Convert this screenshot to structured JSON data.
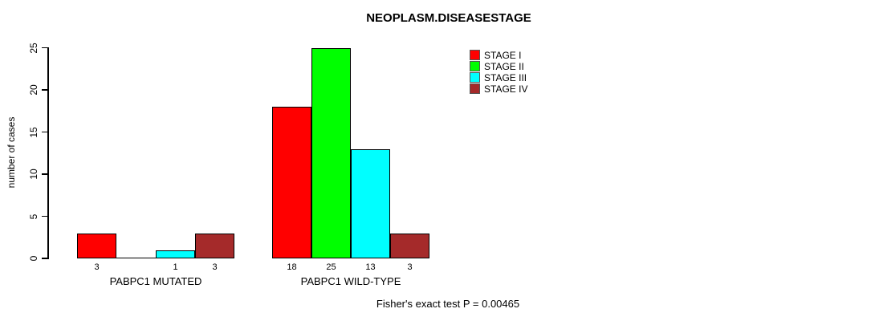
{
  "chart_data": {
    "type": "bar",
    "title": "NEOPLASM.DISEASESTAGE",
    "ylabel": "number of cases",
    "xlabel": "",
    "annotation": "Fisher's exact test P = 0.00465",
    "categories": [
      "PABPC1 MUTATED",
      "PABPC1 WILD-TYPE"
    ],
    "series": [
      {
        "name": "STAGE I",
        "color": "#ff0000",
        "values": [
          3,
          18
        ]
      },
      {
        "name": "STAGE II",
        "color": "#00ff00",
        "values": [
          0,
          25
        ]
      },
      {
        "name": "STAGE III",
        "color": "#00ffff",
        "values": [
          1,
          13
        ]
      },
      {
        "name": "STAGE IV",
        "color": "#a52a2a",
        "values": [
          3,
          3
        ]
      }
    ],
    "ylim": [
      0,
      25
    ],
    "yticks": [
      0,
      5,
      10,
      15,
      20,
      25
    ],
    "grid": false,
    "legend_position": "top-right",
    "value_labels": true,
    "zero_values_unlabeled": true,
    "bar_border_color": "#000000",
    "background_color": "#ffffff"
  }
}
